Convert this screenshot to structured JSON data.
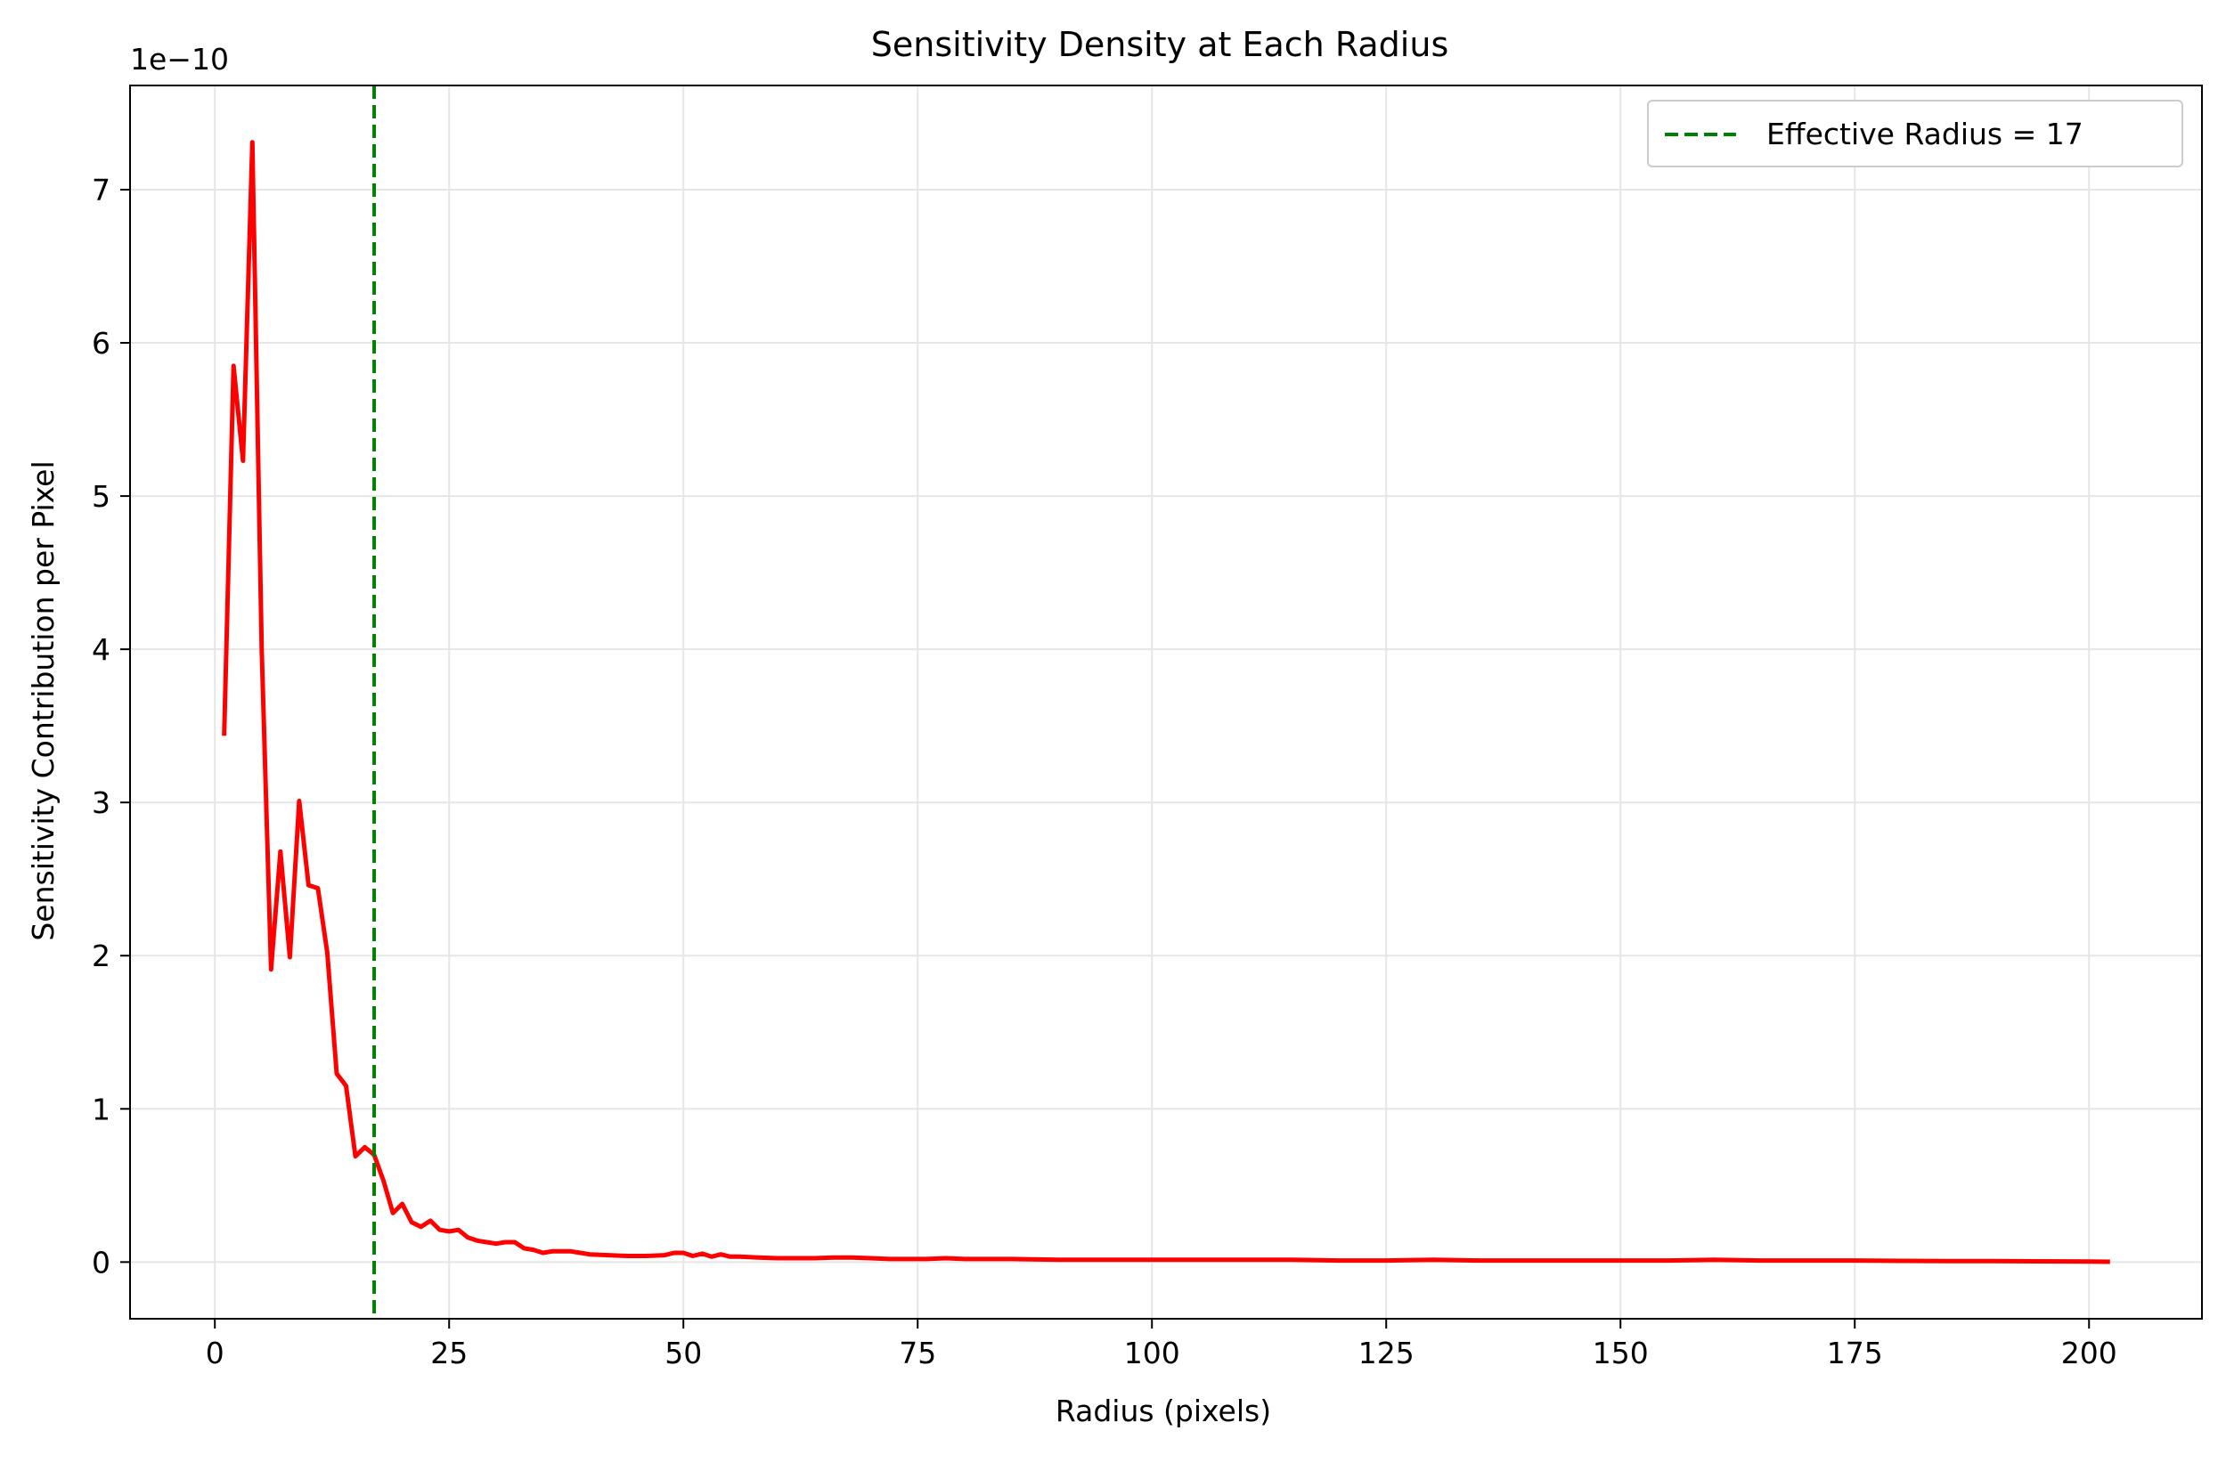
{
  "chart_data": {
    "type": "line",
    "title": "Sensitivity Density at Each Radius",
    "xlabel": "Radius (pixels)",
    "ylabel": "Sensitivity Contribution per Pixel",
    "y_offset_label": "1e−10",
    "xlim": [
      -9.05,
      212.05
    ],
    "ylim": [
      -0.37,
      7.68
    ],
    "x_ticks": [
      0,
      25,
      50,
      75,
      100,
      125,
      150,
      175,
      200
    ],
    "y_ticks": [
      0,
      1,
      2,
      3,
      4,
      5,
      6,
      7
    ],
    "grid": true,
    "legend_position": "top-right",
    "colors": {
      "line": "#ff0000",
      "vline": "#008000",
      "grid": "#e6e6e6",
      "axes": "#000000"
    },
    "series": [
      {
        "x": [
          1,
          2,
          3,
          4,
          5,
          6,
          7,
          8,
          9,
          10,
          11,
          12,
          13,
          14,
          15,
          16,
          17,
          18,
          19,
          20,
          21,
          22,
          23,
          24,
          25,
          26,
          27,
          28,
          29,
          30,
          31,
          32,
          33,
          34,
          35,
          36,
          37,
          38,
          39,
          40,
          42,
          44,
          46,
          48,
          49,
          50,
          51,
          52,
          53,
          54,
          55,
          56,
          58,
          60,
          62,
          64,
          66,
          68,
          70,
          72,
          74,
          76,
          78,
          80,
          85,
          90,
          95,
          100,
          105,
          110,
          115,
          120,
          125,
          130,
          135,
          140,
          145,
          150,
          155,
          160,
          165,
          170,
          175,
          180,
          185,
          190,
          195,
          200,
          202
        ],
        "y": [
          3.45,
          5.85,
          5.23,
          7.31,
          4.0,
          1.91,
          2.68,
          1.99,
          3.01,
          2.46,
          2.44,
          2.02,
          1.23,
          1.15,
          0.69,
          0.75,
          0.7,
          0.53,
          0.32,
          0.38,
          0.26,
          0.23,
          0.27,
          0.21,
          0.2,
          0.21,
          0.16,
          0.14,
          0.13,
          0.12,
          0.13,
          0.13,
          0.09,
          0.08,
          0.06,
          0.07,
          0.07,
          0.07,
          0.06,
          0.05,
          0.045,
          0.04,
          0.04,
          0.045,
          0.06,
          0.06,
          0.04,
          0.055,
          0.035,
          0.05,
          0.035,
          0.035,
          0.03,
          0.025,
          0.025,
          0.025,
          0.03,
          0.03,
          0.025,
          0.02,
          0.02,
          0.02,
          0.025,
          0.02,
          0.02,
          0.015,
          0.015,
          0.015,
          0.015,
          0.015,
          0.015,
          0.01,
          0.01,
          0.015,
          0.01,
          0.01,
          0.01,
          0.01,
          0.01,
          0.015,
          0.01,
          0.01,
          0.01,
          0.008,
          0.006,
          0.006,
          0.005,
          0.003,
          0.002
        ]
      }
    ],
    "vline": {
      "x": 17,
      "label": "Effective Radius = 17"
    }
  }
}
